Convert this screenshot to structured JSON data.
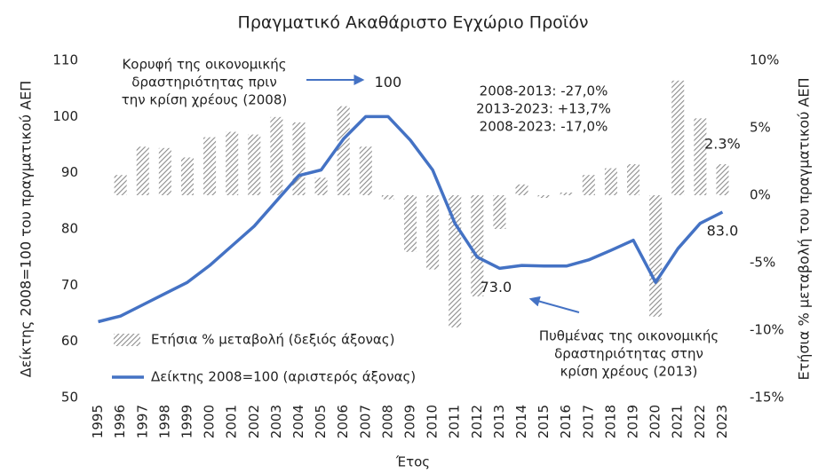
{
  "chart_data": {
    "type": "bar-line",
    "title": "Πραγματικό Ακαθάριστο Εγχώριο Προϊόν",
    "x_label": "Έτος",
    "y_label": "Δείκτης 2008=100 του πραγματικού ΑΕΠ",
    "y2_label": "Ετήσια % μεταβολή του πραγματικού ΑΕΠ",
    "categories": [
      "1995",
      "1996",
      "1997",
      "1998",
      "1999",
      "2000",
      "2001",
      "2002",
      "2003",
      "2004",
      "2005",
      "2006",
      "2007",
      "2008",
      "2009",
      "2010",
      "2011",
      "2012",
      "2013",
      "2014",
      "2015",
      "2016",
      "2017",
      "2018",
      "2019",
      "2020",
      "2021",
      "2022",
      "2023"
    ],
    "series": [
      {
        "name": "Ετήσια % μεταβολή (δεξιός άξονας)",
        "type": "bar",
        "axis": "y2",
        "color": "#8c8c8c",
        "values": [
          null,
          1.5,
          3.6,
          3.5,
          2.8,
          4.3,
          4.7,
          4.5,
          5.8,
          5.4,
          1.3,
          6.6,
          3.6,
          -0.3,
          -4.2,
          -5.5,
          -9.8,
          -7.5,
          -2.5,
          0.8,
          -0.2,
          0.2,
          1.5,
          2.0,
          2.3,
          -9.0,
          8.5,
          5.7,
          2.3
        ],
        "value_labels": [
          null,
          null,
          null,
          null,
          null,
          null,
          null,
          null,
          null,
          null,
          null,
          null,
          null,
          null,
          null,
          null,
          null,
          null,
          null,
          null,
          null,
          null,
          null,
          null,
          null,
          null,
          null,
          null,
          "2.3%"
        ]
      },
      {
        "name": "Δείκτης 2008=100 (αριστερός άξονας)",
        "type": "line",
        "axis": "y",
        "color": "#4472c4",
        "values": [
          63.5,
          64.5,
          66.5,
          68.5,
          70.5,
          73.5,
          77,
          80.5,
          85,
          89.5,
          90.5,
          96,
          100,
          100,
          95.8,
          90.5,
          81,
          75,
          73.0,
          73.5,
          73.4,
          73.4,
          74.5,
          76.2,
          78,
          70.5,
          76.5,
          81,
          83.0
        ],
        "value_labels": [
          null,
          null,
          null,
          null,
          null,
          null,
          null,
          null,
          null,
          null,
          null,
          null,
          null,
          "100",
          null,
          null,
          null,
          null,
          "73.0",
          null,
          null,
          null,
          null,
          null,
          null,
          null,
          null,
          null,
          "83.0"
        ]
      }
    ],
    "ylim": [
      50,
      110
    ],
    "yticks": [
      50,
      60,
      70,
      80,
      90,
      100,
      110
    ],
    "y2lim": [
      -15,
      10
    ],
    "y2ticks": [
      {
        "value": -15,
        "label": "-15%"
      },
      {
        "value": -10,
        "label": "-10%"
      },
      {
        "value": -5,
        "label": "-5%"
      },
      {
        "value": 0,
        "label": "0%"
      },
      {
        "value": 5,
        "label": "5%"
      },
      {
        "value": 10,
        "label": "10%"
      }
    ],
    "legend": "lower left",
    "annotations": [
      {
        "lines": [
          "Κορυφή της οικονομικής",
          "δραστηριότητας πριν",
          "την κρίση χρέους (2008)"
        ]
      },
      {
        "lines": [
          "2008-2013: -27,0%",
          "2013-2023: +13,7%",
          "2008-2023: -17,0%"
        ]
      },
      {
        "lines": [
          "Πυθμένας της οικονομικής",
          "δραστηριότητας στην",
          "κρίση χρέους (2013)"
        ]
      }
    ]
  }
}
